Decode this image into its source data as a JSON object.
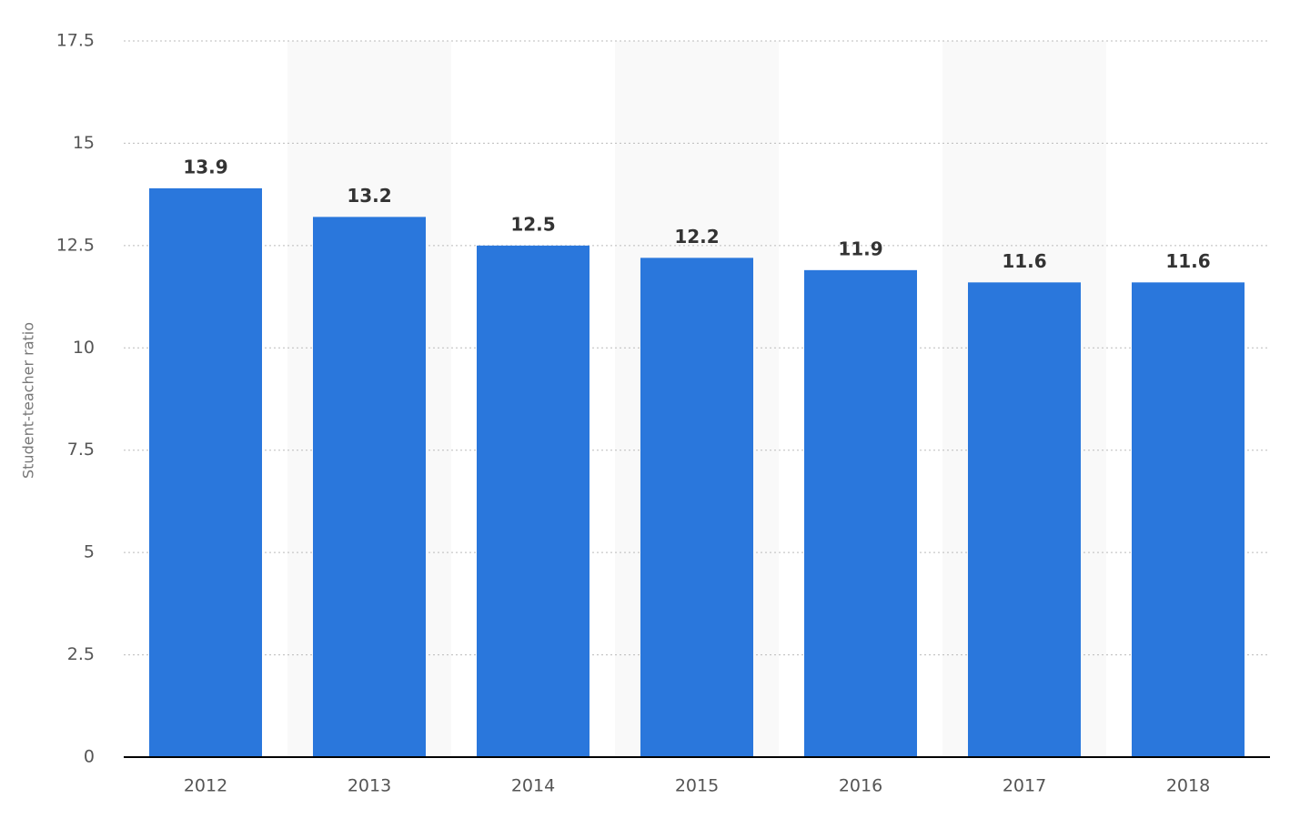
{
  "chart_data": {
    "type": "bar",
    "y_label": "Student-teacher ratio",
    "categories": [
      "2012",
      "2013",
      "2014",
      "2015",
      "2016",
      "2017",
      "2018"
    ],
    "values": [
      13.9,
      13.2,
      12.5,
      12.2,
      11.9,
      11.6,
      11.6
    ],
    "color": "#2a77dc",
    "ylim": [
      0,
      17.5
    ],
    "yticks": [
      0,
      2.5,
      5,
      7.5,
      10,
      12.5,
      15,
      17.5
    ],
    "grid": true
  }
}
